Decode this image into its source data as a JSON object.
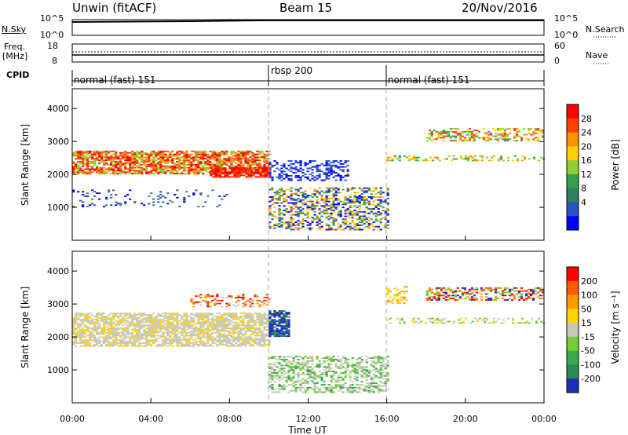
{
  "header": {
    "title": "Unwin (fitACF)",
    "beam": "Beam 15",
    "date": "20/Nov/2016"
  },
  "nsky_panel": {
    "left_label": "N.Sky",
    "right_label": "N.Search",
    "left_ticks": [
      "10^5",
      "10^0"
    ],
    "right_ticks": [
      "10^5",
      "10^0"
    ]
  },
  "freq_panel": {
    "left_label_line1": "Freq.",
    "left_label_line2": "[MHz]",
    "right_label": "Nave",
    "left_ticks": [
      "18",
      "8"
    ],
    "right_ticks": [
      "60",
      "0"
    ]
  },
  "cpid": {
    "label": "CPID",
    "segments": [
      {
        "name": "normal (fast) 151",
        "start_hour": 0,
        "end_hour": 10
      },
      {
        "name": "rbsp 200",
        "start_hour": 10,
        "end_hour": 16
      },
      {
        "name": "normal (fast) 151",
        "start_hour": 16,
        "end_hour": 24
      }
    ]
  },
  "chart_data": [
    {
      "type": "heatmap",
      "name": "power",
      "ylabel": "Slant Range [km]",
      "x_range_hours": [
        0,
        24
      ],
      "ylim": [
        0,
        4600
      ],
      "y_ticks": [
        1000,
        2000,
        3000,
        4000
      ],
      "colorbar": {
        "label": "Power [dB]",
        "ticks": [
          "28",
          "24",
          "20",
          "16",
          "12",
          "8",
          "4"
        ],
        "range": [
          0,
          32
        ],
        "colors": [
          "#0000ff",
          "#2a52be",
          "#2f8060",
          "#32a050",
          "#90d030",
          "#ffd000",
          "#ff9000",
          "#ff4000",
          "#ff0000"
        ]
      }
    },
    {
      "type": "heatmap",
      "name": "velocity",
      "ylabel": "Slant Range [km]",
      "xlabel": "Time UT",
      "x_range_hours": [
        0,
        24
      ],
      "x_ticks": [
        "00:00",
        "04:00",
        "08:00",
        "12:00",
        "16:00",
        "20:00",
        "00:00"
      ],
      "ylim": [
        0,
        4600
      ],
      "y_ticks": [
        1000,
        2000,
        3000,
        4000
      ],
      "colorbar": {
        "label": "Velocity [m s⁻¹]",
        "ticks": [
          "200",
          "100",
          "50",
          "15",
          "-15",
          "-50",
          "-100",
          "-200"
        ],
        "colors": [
          "#1c2fb8",
          "#2a8a55",
          "#3da850",
          "#77cc33",
          "#c8c8b8",
          "#ffd400",
          "#ff9a00",
          "#ff5a00",
          "#ff0000"
        ]
      }
    }
  ]
}
